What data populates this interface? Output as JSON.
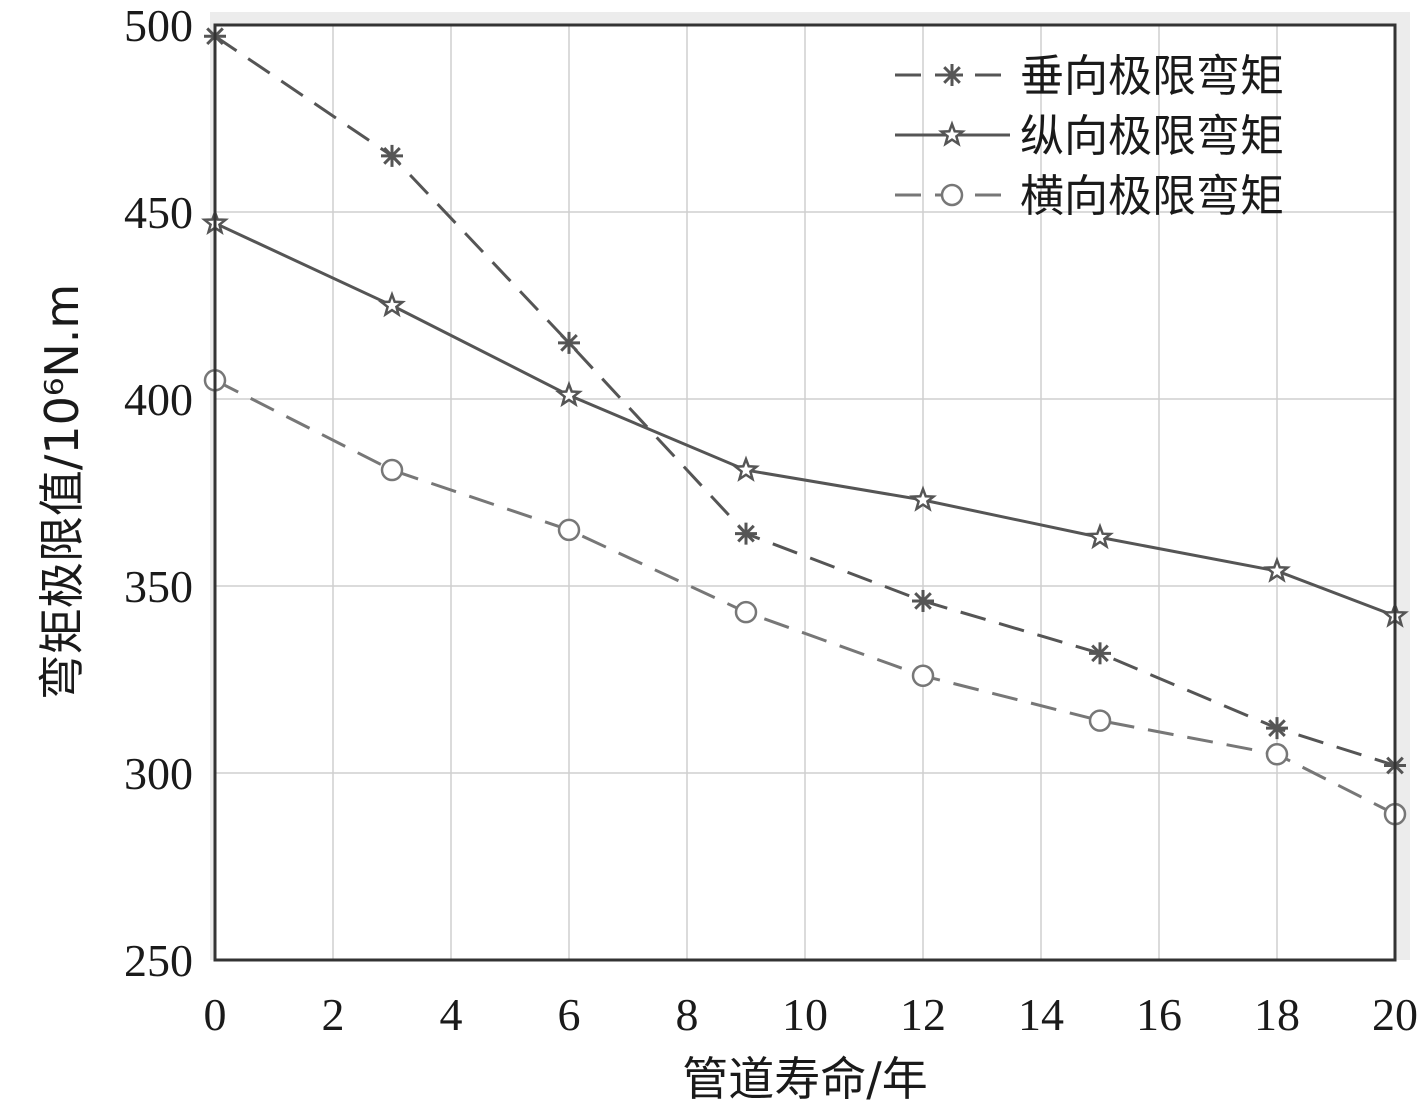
{
  "chart_data": {
    "type": "line",
    "xlabel": "管道寿命/年",
    "ylabel": "弯矩极限值/10⁶N.m",
    "xlim": [
      0,
      20
    ],
    "ylim": [
      250,
      500
    ],
    "xticks": [
      0,
      2,
      4,
      6,
      8,
      10,
      12,
      14,
      16,
      18,
      20
    ],
    "yticks": [
      250,
      300,
      350,
      400,
      450,
      500
    ],
    "grid": true,
    "legend_position": "top-right",
    "x": [
      0,
      3,
      6,
      9,
      12,
      15,
      18,
      20
    ],
    "series": [
      {
        "name": "垂向极限弯矩",
        "marker": "asterisk",
        "line": "dashed",
        "color": "#555555",
        "values": [
          497,
          465,
          415,
          364,
          346,
          332,
          312,
          302
        ]
      },
      {
        "name": "纵向极限弯矩",
        "marker": "star",
        "line": "solid",
        "color": "#555555",
        "values": [
          447,
          425,
          401,
          381,
          373,
          363,
          354,
          342
        ]
      },
      {
        "name": "横向极限弯矩",
        "marker": "circle",
        "line": "dashed",
        "color": "#777777",
        "values": [
          405,
          381,
          365,
          343,
          326,
          314,
          305,
          289
        ]
      }
    ]
  }
}
